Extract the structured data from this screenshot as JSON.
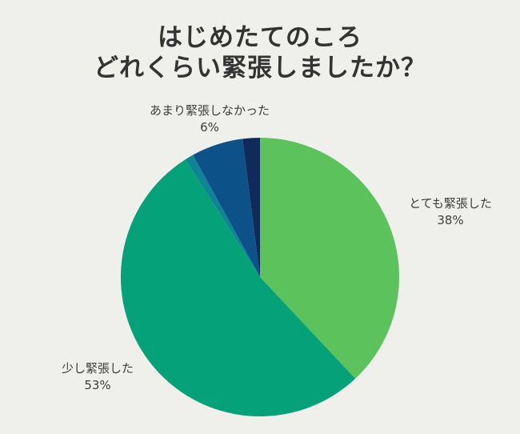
{
  "chart_data": {
    "type": "pie",
    "title": "はじめたてのころ どれくらい緊張しましたか？",
    "title_lines": [
      "はじめたてのころ",
      "どれくらい緊張しましたか？"
    ],
    "slices": [
      {
        "label": "とても緊張した",
        "value": 38,
        "pct_label": "38%",
        "color": "#5cc25c"
      },
      {
        "label": "少し緊張した",
        "value": 53,
        "pct_label": "53%",
        "color": "#05a178"
      },
      {
        "label": "",
        "value": 1,
        "pct_label": "",
        "color": "#0f8494"
      },
      {
        "label": "あまり緊張しなかった",
        "value": 6,
        "pct_label": "6%",
        "color": "#0c5187"
      },
      {
        "label": "",
        "value": 2,
        "pct_label": "",
        "color": "#102a5a"
      }
    ],
    "start_angle_deg": 0,
    "direction": "clockwise",
    "legend": "none",
    "labels_shown": [
      "とても緊張した 38%",
      "少し緊張した 53%",
      "あまり緊張しなかった 6%"
    ],
    "background": "#efefec",
    "title_color": "#333333",
    "label_color": "#3d3d3d"
  }
}
